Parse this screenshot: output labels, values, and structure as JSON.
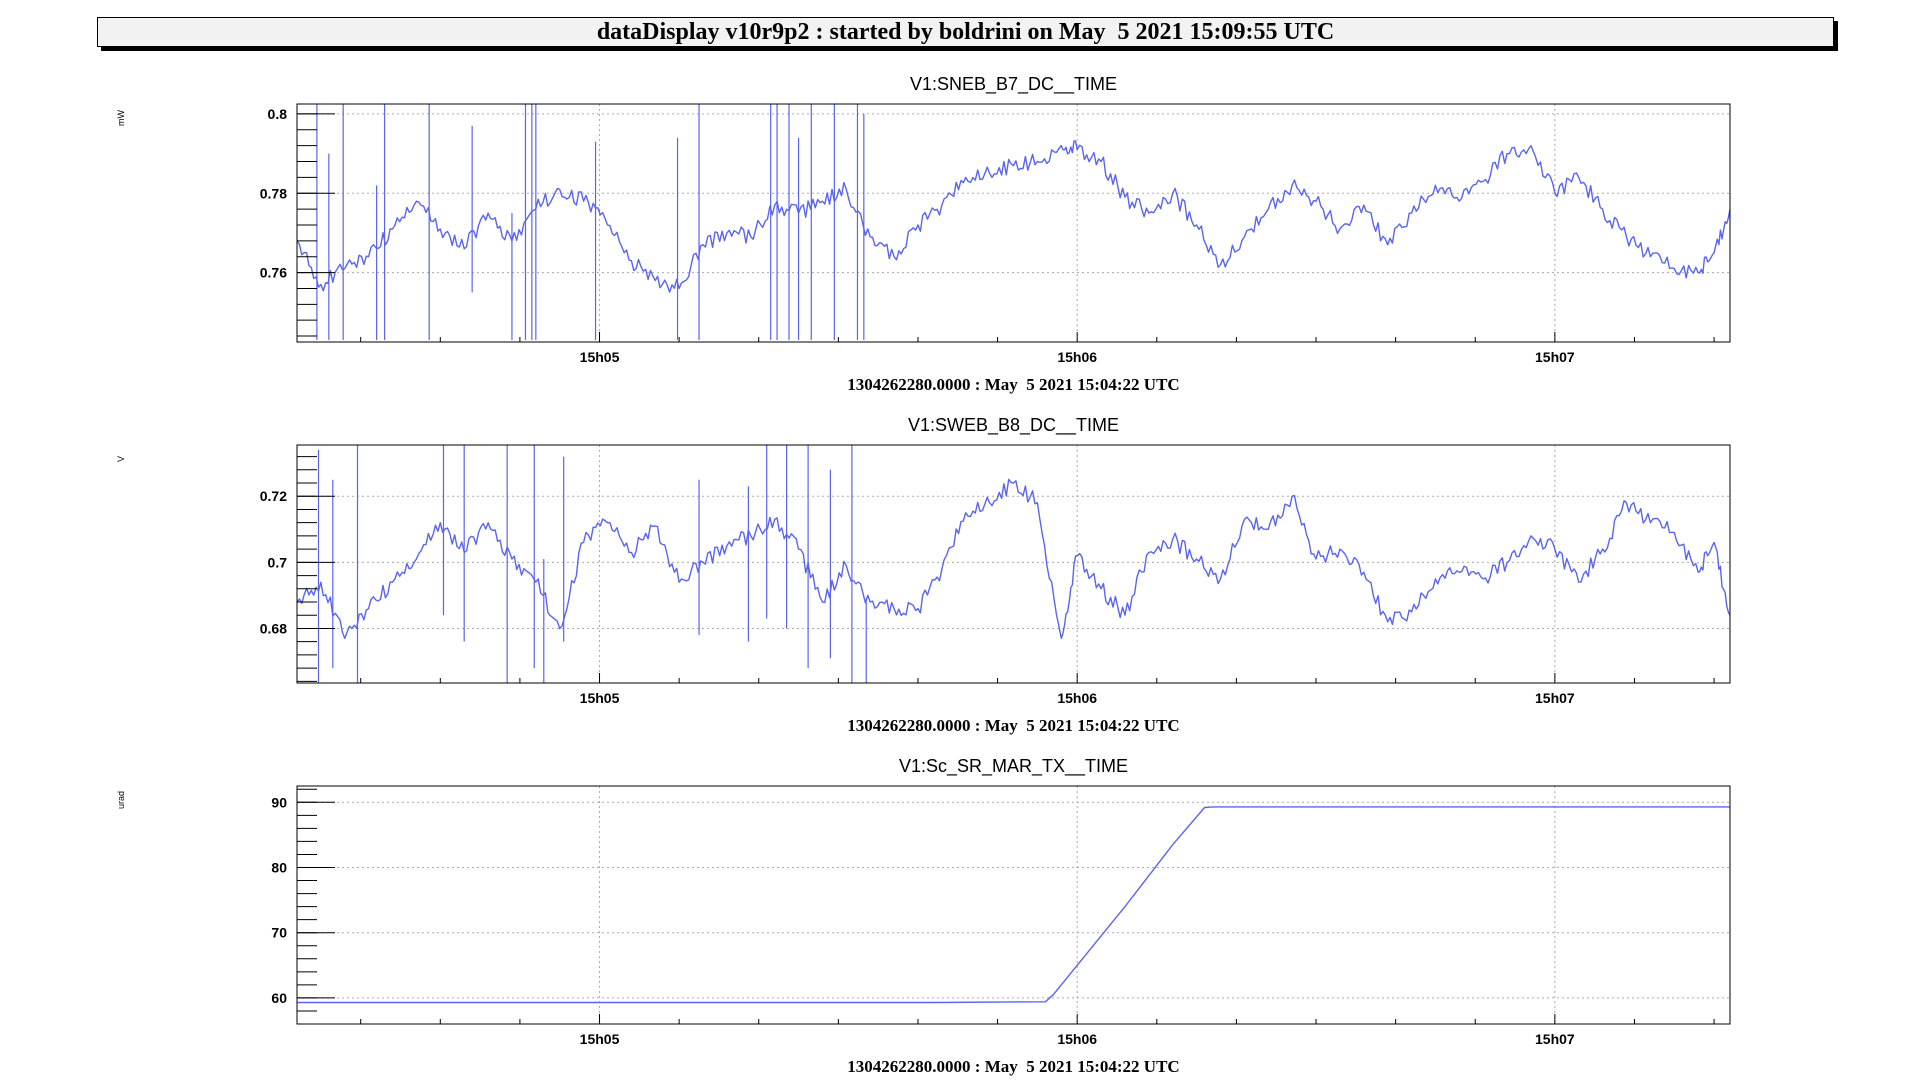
{
  "header": {
    "title": "dataDisplay v10r9p2 : started by boldrini on May  5 2021 15:09:55 UTC"
  },
  "colors": {
    "series": "#5a64f0",
    "grid": "#aaaaaa",
    "frame": "#000000"
  },
  "chart_data": [
    {
      "type": "line",
      "title": "V1:SNEB_B7_DC__TIME",
      "ylabel": "mW",
      "xlabel": "1304262280.0000 : May  5 2021 15:04:22 UTC",
      "x_ticks": [
        {
          "t": 38,
          "label": "15h05"
        },
        {
          "t": 98,
          "label": "15h06"
        },
        {
          "t": 158,
          "label": "15h07"
        }
      ],
      "xlim": [
        0,
        180
      ],
      "ylim": [
        0.7425,
        0.8025
      ],
      "y_ticks": [
        0.76,
        0.78,
        0.8
      ],
      "y_tick_labels": [
        "0.76",
        "0.78",
        "0.8"
      ],
      "grid": true,
      "series": [
        {
          "x": [
            0,
            3,
            6,
            9,
            12,
            15,
            18,
            21,
            24,
            27,
            30,
            33,
            36,
            39,
            42,
            45,
            48,
            51,
            54,
            57,
            60,
            63,
            66,
            69,
            72,
            75,
            78,
            81,
            84,
            87,
            90,
            93,
            96,
            98,
            101,
            104,
            107,
            110,
            113,
            116,
            119,
            122,
            125,
            128,
            131,
            134,
            137,
            140,
            143,
            146,
            149,
            152,
            155,
            158,
            161,
            164,
            167,
            170,
            173,
            176,
            178,
            180
          ],
          "y": [
            0.768,
            0.757,
            0.761,
            0.764,
            0.771,
            0.778,
            0.771,
            0.766,
            0.775,
            0.768,
            0.776,
            0.781,
            0.778,
            0.772,
            0.763,
            0.758,
            0.756,
            0.767,
            0.77,
            0.769,
            0.777,
            0.775,
            0.778,
            0.781,
            0.769,
            0.764,
            0.772,
            0.777,
            0.784,
            0.785,
            0.787,
            0.788,
            0.792,
            0.791,
            0.788,
            0.779,
            0.775,
            0.78,
            0.772,
            0.762,
            0.769,
            0.776,
            0.782,
            0.778,
            0.771,
            0.777,
            0.767,
            0.775,
            0.782,
            0.778,
            0.783,
            0.79,
            0.792,
            0.78,
            0.784,
            0.776,
            0.769,
            0.764,
            0.761,
            0.76,
            0.765,
            0.776
          ]
        }
      ],
      "spikes": [
        {
          "x": 2.5,
          "y1": 0.743,
          "y2": 0.8025
        },
        {
          "x": 4,
          "y1": 0.743,
          "y2": 0.79
        },
        {
          "x": 5.8,
          "y1": 0.743,
          "y2": 0.8025
        },
        {
          "x": 10,
          "y1": 0.743,
          "y2": 0.782
        },
        {
          "x": 11,
          "y1": 0.743,
          "y2": 0.8025
        },
        {
          "x": 16.6,
          "y1": 0.743,
          "y2": 0.8025
        },
        {
          "x": 22,
          "y1": 0.755,
          "y2": 0.797
        },
        {
          "x": 27,
          "y1": 0.743,
          "y2": 0.775
        },
        {
          "x": 28.7,
          "y1": 0.743,
          "y2": 0.8025
        },
        {
          "x": 29.5,
          "y1": 0.743,
          "y2": 0.8025
        },
        {
          "x": 30,
          "y1": 0.743,
          "y2": 0.8025
        },
        {
          "x": 37.5,
          "y1": 0.743,
          "y2": 0.793
        },
        {
          "x": 47.8,
          "y1": 0.743,
          "y2": 0.794
        },
        {
          "x": 50.5,
          "y1": 0.743,
          "y2": 0.8025
        },
        {
          "x": 59.5,
          "y1": 0.743,
          "y2": 0.8025
        },
        {
          "x": 60.3,
          "y1": 0.743,
          "y2": 0.8025
        },
        {
          "x": 61.8,
          "y1": 0.743,
          "y2": 0.8025
        },
        {
          "x": 63,
          "y1": 0.743,
          "y2": 0.794
        },
        {
          "x": 64.6,
          "y1": 0.743,
          "y2": 0.8025
        },
        {
          "x": 67.5,
          "y1": 0.743,
          "y2": 0.8025
        },
        {
          "x": 70.4,
          "y1": 0.743,
          "y2": 0.8025
        },
        {
          "x": 71.2,
          "y1": 0.743,
          "y2": 0.8
        }
      ]
    },
    {
      "type": "line",
      "title": "V1:SWEB_B8_DC__TIME",
      "ylabel": "V",
      "xlabel": "1304262280.0000 : May  5 2021 15:04:22 UTC",
      "x_ticks": [
        {
          "t": 38,
          "label": "15h05"
        },
        {
          "t": 98,
          "label": "15h06"
        },
        {
          "t": 158,
          "label": "15h07"
        }
      ],
      "xlim": [
        0,
        180
      ],
      "ylim": [
        0.6635,
        0.7355
      ],
      "y_ticks": [
        0.68,
        0.7,
        0.72
      ],
      "y_tick_labels": [
        "0.68",
        "0.7",
        "0.72"
      ],
      "grid": true,
      "series": [
        {
          "x": [
            0,
            3,
            6,
            9,
            12,
            15,
            18,
            21,
            24,
            27,
            30,
            33,
            36,
            39,
            42,
            45,
            48,
            51,
            54,
            57,
            60,
            63,
            66,
            69,
            72,
            75,
            78,
            81,
            84,
            87,
            90,
            93,
            96,
            98,
            101,
            104,
            107,
            110,
            113,
            116,
            119,
            122,
            125,
            128,
            131,
            134,
            137,
            140,
            143,
            146,
            149,
            152,
            155,
            158,
            161,
            164,
            167,
            170,
            173,
            176,
            178,
            180
          ],
          "y": [
            0.688,
            0.694,
            0.677,
            0.686,
            0.694,
            0.701,
            0.712,
            0.703,
            0.712,
            0.701,
            0.694,
            0.68,
            0.706,
            0.712,
            0.703,
            0.711,
            0.694,
            0.7,
            0.705,
            0.708,
            0.713,
            0.704,
            0.688,
            0.699,
            0.688,
            0.686,
            0.686,
            0.698,
            0.715,
            0.718,
            0.724,
            0.718,
            0.677,
            0.702,
            0.692,
            0.684,
            0.703,
            0.707,
            0.701,
            0.695,
            0.713,
            0.71,
            0.72,
            0.701,
            0.704,
            0.697,
            0.682,
            0.685,
            0.695,
            0.697,
            0.695,
            0.7,
            0.708,
            0.704,
            0.694,
            0.704,
            0.718,
            0.712,
            0.709,
            0.697,
            0.706,
            0.684
          ]
        }
      ],
      "spikes": [
        {
          "x": 2.7,
          "y1": 0.6635,
          "y2": 0.734
        },
        {
          "x": 4.5,
          "y1": 0.668,
          "y2": 0.725
        },
        {
          "x": 7.6,
          "y1": 0.6635,
          "y2": 0.7355
        },
        {
          "x": 18.4,
          "y1": 0.684,
          "y2": 0.7355
        },
        {
          "x": 21,
          "y1": 0.676,
          "y2": 0.7355
        },
        {
          "x": 26.4,
          "y1": 0.6635,
          "y2": 0.7355
        },
        {
          "x": 29.8,
          "y1": 0.668,
          "y2": 0.7355
        },
        {
          "x": 31,
          "y1": 0.6635,
          "y2": 0.701
        },
        {
          "x": 33.5,
          "y1": 0.676,
          "y2": 0.732
        },
        {
          "x": 50.5,
          "y1": 0.678,
          "y2": 0.725
        },
        {
          "x": 56.7,
          "y1": 0.676,
          "y2": 0.723
        },
        {
          "x": 59,
          "y1": 0.683,
          "y2": 0.7355
        },
        {
          "x": 61.5,
          "y1": 0.68,
          "y2": 0.7355
        },
        {
          "x": 64.2,
          "y1": 0.668,
          "y2": 0.7355
        },
        {
          "x": 67,
          "y1": 0.671,
          "y2": 0.728
        },
        {
          "x": 69.7,
          "y1": 0.6635,
          "y2": 0.7355
        },
        {
          "x": 71.5,
          "y1": 0.6635,
          "y2": 0.689
        }
      ]
    },
    {
      "type": "line",
      "title": "V1:Sc_SR_MAR_TX__TIME",
      "ylabel": "urad",
      "xlabel": "1304262280.0000 : May  5 2021 15:04:22 UTC",
      "x_ticks": [
        {
          "t": 38,
          "label": "15h05"
        },
        {
          "t": 98,
          "label": "15h06"
        },
        {
          "t": 158,
          "label": "15h07"
        }
      ],
      "xlim": [
        0,
        180
      ],
      "ylim": [
        56,
        92.5
      ],
      "y_ticks": [
        60,
        70,
        80,
        90
      ],
      "y_tick_labels": [
        "60",
        "70",
        "80",
        "90"
      ],
      "grid": true,
      "series": [
        {
          "x": [
            0,
            20,
            40,
            60,
            80,
            94,
            95,
            98,
            104,
            110,
            114,
            115,
            130,
            150,
            170,
            180
          ],
          "y": [
            59.3,
            59.3,
            59.3,
            59.3,
            59.3,
            59.4,
            60.5,
            65,
            74,
            83.5,
            89.2,
            89.3,
            89.3,
            89.3,
            89.3,
            89.3
          ]
        }
      ],
      "spikes": []
    }
  ]
}
